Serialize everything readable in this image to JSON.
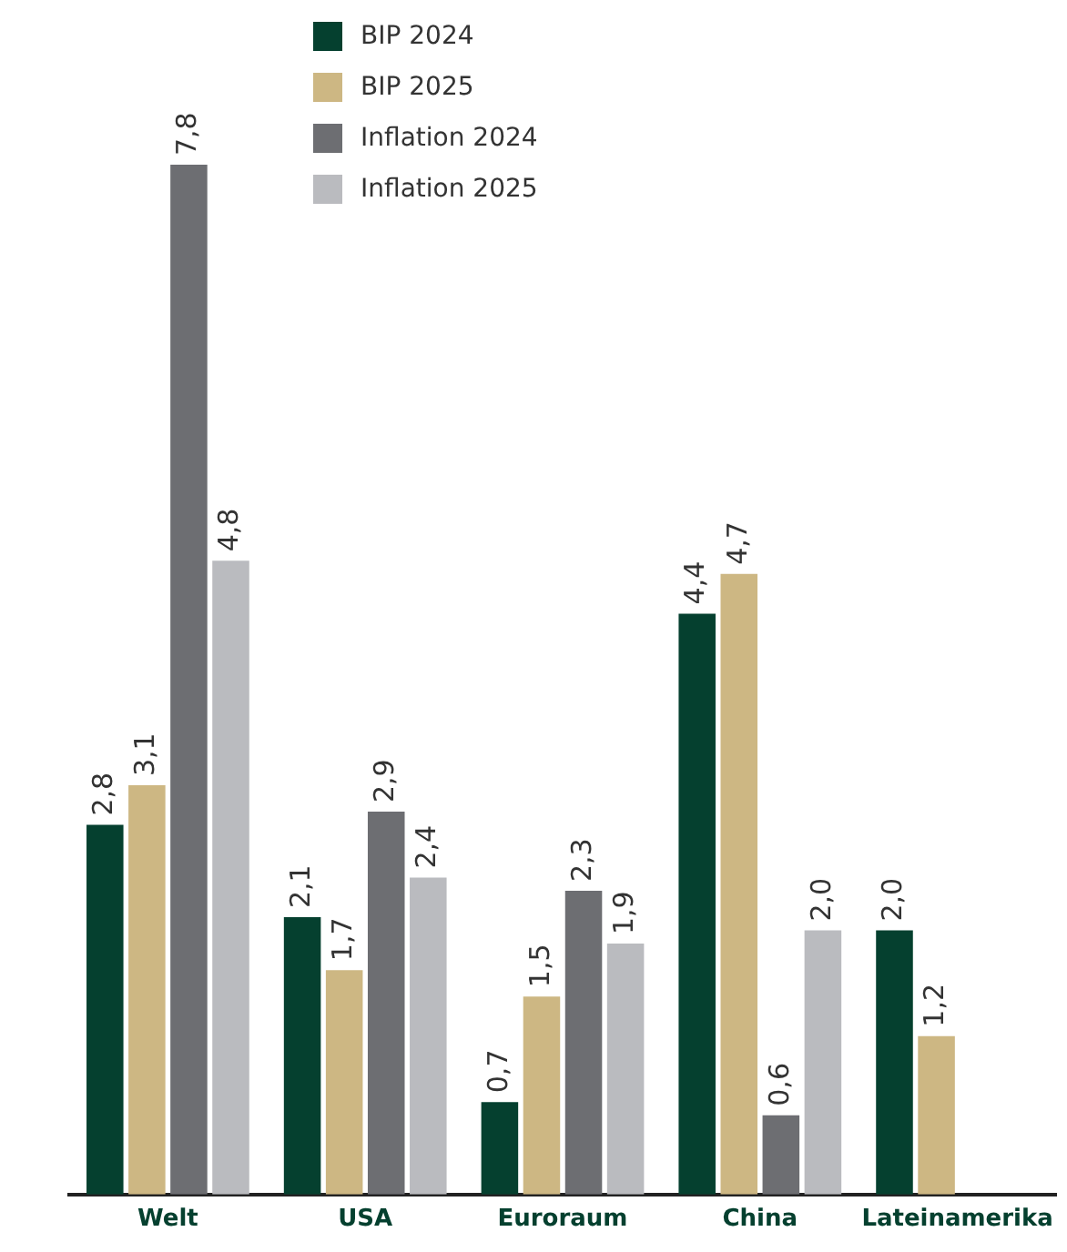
{
  "chart_data": {
    "type": "bar",
    "categories": [
      "Welt",
      "USA",
      "Euroraum",
      "China",
      "Lateinamerika"
    ],
    "series": [
      {
        "name": "BIP 2024",
        "color": "#05402f",
        "values": [
          2.8,
          2.1,
          0.7,
          4.4,
          2.0
        ],
        "value_labels": [
          "2,8",
          "2,1",
          "0,7",
          "4,4",
          "2,0"
        ]
      },
      {
        "name": "BIP 2025",
        "color": "#cdb783",
        "values": [
          3.1,
          1.7,
          1.5,
          4.7,
          1.2
        ],
        "value_labels": [
          "3,1",
          "1,7",
          "1,5",
          "4,7",
          "1,2"
        ]
      },
      {
        "name": "Inflation 2024",
        "color": "#6d6e72",
        "values": [
          7.8,
          2.9,
          2.3,
          0.6,
          null
        ],
        "value_labels": [
          "7,8",
          "2,9",
          "2,3",
          "0,6",
          null
        ]
      },
      {
        "name": "Inflation 2025",
        "color": "#babbbf",
        "values": [
          4.8,
          2.4,
          1.9,
          2.0,
          null
        ],
        "value_labels": [
          "4,8",
          "2,4",
          "1,9",
          "2,0",
          null
        ]
      }
    ],
    "legend": "top left",
    "grid": false
  }
}
